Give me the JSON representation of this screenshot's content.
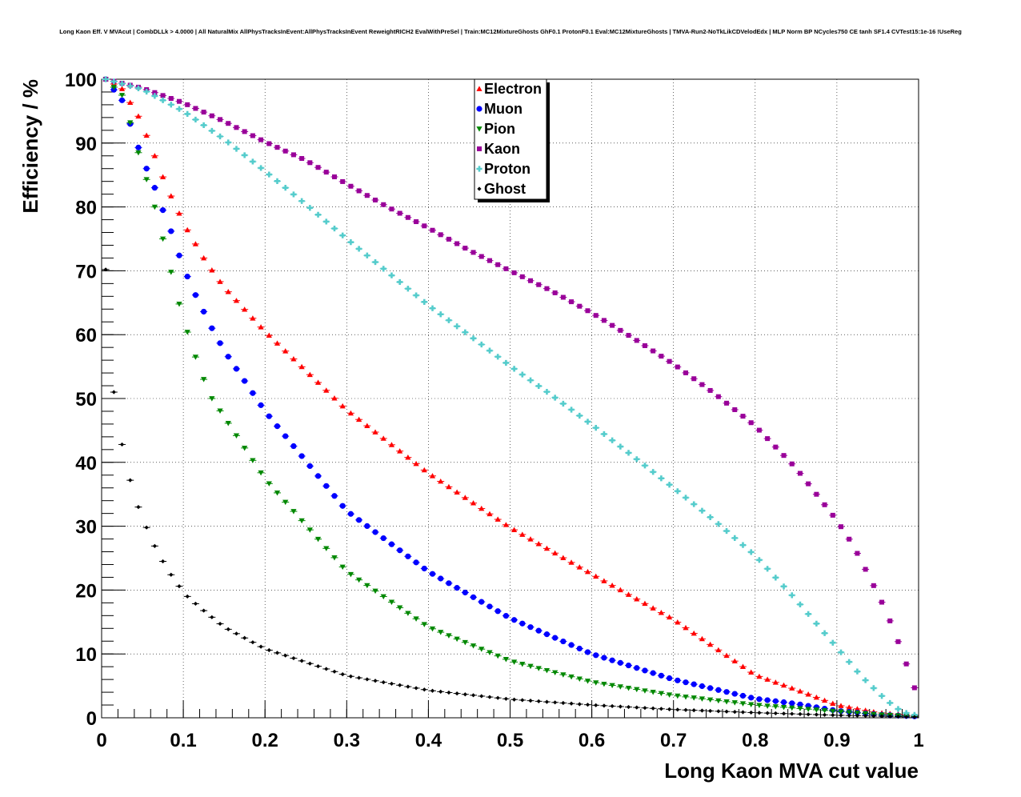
{
  "chart_data": {
    "type": "scatter",
    "title": "Long Kaon Eff. V MVAcut | CombDLLk > 4.0000 | All NaturalMix AllPhysTracksInEvent:AllPhysTracksInEvent ReweightRICH2 EvalWithPreSel | Train:MC12MixtureGhosts GhF0.1 ProtonF0.1 Eval:MC12MixtureGhosts | TMVA-Run2-NoTkLikCDVelodEdx | MLP Norm BP NCycles750 CE tanh SF1.4 CVTest15:1e-16 !UseReg",
    "xlabel": "Long Kaon MVA cut value",
    "ylabel": "Efficiency / %",
    "xlim": [
      0,
      1
    ],
    "ylim": [
      0,
      100
    ],
    "x_ticks": [
      "0",
      "0.1",
      "0.2",
      "0.3",
      "0.4",
      "0.5",
      "0.6",
      "0.7",
      "0.8",
      "0.9",
      "1"
    ],
    "y_ticks": [
      "0",
      "10",
      "20",
      "30",
      "40",
      "50",
      "60",
      "70",
      "80",
      "90",
      "100"
    ],
    "grid": true,
    "legend_position": "top-center",
    "series": [
      {
        "name": "Electron",
        "color": "#ff0000",
        "marker": "triangle-up",
        "points": [
          [
            0.005,
            100
          ],
          [
            0.025,
            98.5
          ],
          [
            0.045,
            94.2
          ],
          [
            0.055,
            91.2
          ],
          [
            0.065,
            88.0
          ],
          [
            0.075,
            84.7
          ],
          [
            0.085,
            81.7
          ],
          [
            0.095,
            79.0
          ],
          [
            0.105,
            76.4
          ],
          [
            0.115,
            74.2
          ],
          [
            0.125,
            72.0
          ],
          [
            0.135,
            70.1
          ],
          [
            0.15,
            67.4
          ],
          [
            0.2,
            60.5
          ],
          [
            0.3,
            48.2
          ],
          [
            0.4,
            38.3
          ],
          [
            0.5,
            29.8
          ],
          [
            0.6,
            22.5
          ],
          [
            0.7,
            15.4
          ],
          [
            0.8,
            6.7
          ],
          [
            0.85,
            4.4
          ],
          [
            0.9,
            2.0
          ],
          [
            0.95,
            0.8
          ],
          [
            1.0,
            0.3
          ]
        ]
      },
      {
        "name": "Muon",
        "color": "#0000ff",
        "marker": "circle",
        "points": [
          [
            0.005,
            100
          ],
          [
            0.025,
            96.7
          ],
          [
            0.045,
            89.3
          ],
          [
            0.055,
            86.0
          ],
          [
            0.065,
            83.0
          ],
          [
            0.075,
            79.5
          ],
          [
            0.085,
            76.2
          ],
          [
            0.095,
            72.4
          ],
          [
            0.105,
            69.1
          ],
          [
            0.115,
            66.2
          ],
          [
            0.125,
            63.6
          ],
          [
            0.135,
            61.0
          ],
          [
            0.15,
            57.5
          ],
          [
            0.2,
            48.0
          ],
          [
            0.3,
            32.4
          ],
          [
            0.4,
            22.9
          ],
          [
            0.5,
            15.6
          ],
          [
            0.6,
            10.0
          ],
          [
            0.7,
            6.0
          ],
          [
            0.8,
            3.0
          ],
          [
            0.85,
            2.2
          ],
          [
            0.9,
            1.1
          ],
          [
            0.95,
            0.5
          ],
          [
            1.0,
            0.2
          ]
        ]
      },
      {
        "name": "Pion",
        "color": "#008800",
        "marker": "triangle-down",
        "points": [
          [
            0.005,
            100
          ],
          [
            0.025,
            97.5
          ],
          [
            0.035,
            93.2
          ],
          [
            0.045,
            88.5
          ],
          [
            0.055,
            84.3
          ],
          [
            0.065,
            80.0
          ],
          [
            0.075,
            75.0
          ],
          [
            0.085,
            69.8
          ],
          [
            0.095,
            64.8
          ],
          [
            0.105,
            60.4
          ],
          [
            0.115,
            56.5
          ],
          [
            0.125,
            53.0
          ],
          [
            0.135,
            50.0
          ],
          [
            0.15,
            47.1
          ],
          [
            0.2,
            37.4
          ],
          [
            0.3,
            22.9
          ],
          [
            0.4,
            14.2
          ],
          [
            0.5,
            8.9
          ],
          [
            0.6,
            5.6
          ],
          [
            0.7,
            3.5
          ],
          [
            0.8,
            2.0
          ],
          [
            0.85,
            1.5
          ],
          [
            0.9,
            1.0
          ],
          [
            0.95,
            0.5
          ],
          [
            1.0,
            0.2
          ]
        ]
      },
      {
        "name": "Kaon",
        "color": "#990099",
        "marker": "square",
        "points": [
          [
            0.005,
            100
          ],
          [
            0.05,
            98.6
          ],
          [
            0.1,
            96.3
          ],
          [
            0.15,
            93.4
          ],
          [
            0.2,
            90.2
          ],
          [
            0.25,
            87.3
          ],
          [
            0.3,
            83.6
          ],
          [
            0.35,
            80.0
          ],
          [
            0.4,
            76.7
          ],
          [
            0.45,
            73.2
          ],
          [
            0.5,
            70.0
          ],
          [
            0.55,
            66.9
          ],
          [
            0.6,
            63.4
          ],
          [
            0.65,
            59.5
          ],
          [
            0.7,
            55.4
          ],
          [
            0.75,
            50.8
          ],
          [
            0.8,
            45.7
          ],
          [
            0.85,
            39.1
          ],
          [
            0.9,
            30.9
          ],
          [
            0.92,
            27.0
          ],
          [
            0.94,
            22.0
          ],
          [
            0.96,
            16.8
          ],
          [
            0.98,
            10.3
          ],
          [
            0.995,
            4.7
          ]
        ]
      },
      {
        "name": "Proton",
        "color": "#55cccc",
        "marker": "cross",
        "points": [
          [
            0.005,
            100
          ],
          [
            0.05,
            98.4
          ],
          [
            0.1,
            95.0
          ],
          [
            0.15,
            90.6
          ],
          [
            0.2,
            85.6
          ],
          [
            0.25,
            80.4
          ],
          [
            0.3,
            75.0
          ],
          [
            0.35,
            69.8
          ],
          [
            0.4,
            64.6
          ],
          [
            0.45,
            59.9
          ],
          [
            0.5,
            55.1
          ],
          [
            0.55,
            50.6
          ],
          [
            0.6,
            45.9
          ],
          [
            0.65,
            41.0
          ],
          [
            0.7,
            36.0
          ],
          [
            0.75,
            30.9
          ],
          [
            0.8,
            25.4
          ],
          [
            0.85,
            18.5
          ],
          [
            0.9,
            11.0
          ],
          [
            0.93,
            6.5
          ],
          [
            0.96,
            2.8
          ],
          [
            0.98,
            0.9
          ],
          [
            1.0,
            0.3
          ]
        ]
      },
      {
        "name": "Ghost",
        "color": "#000000",
        "marker": "diamond",
        "points": [
          [
            0.005,
            70.2
          ],
          [
            0.015,
            51.0
          ],
          [
            0.025,
            42.8
          ],
          [
            0.035,
            37.2
          ],
          [
            0.045,
            33.0
          ],
          [
            0.055,
            29.8
          ],
          [
            0.065,
            26.9
          ],
          [
            0.075,
            24.5
          ],
          [
            0.085,
            22.4
          ],
          [
            0.095,
            20.6
          ],
          [
            0.105,
            19.0
          ],
          [
            0.12,
            17.3
          ],
          [
            0.15,
            14.2
          ],
          [
            0.2,
            10.8
          ],
          [
            0.3,
            6.6
          ],
          [
            0.4,
            4.3
          ],
          [
            0.5,
            2.9
          ],
          [
            0.6,
            2.0
          ],
          [
            0.7,
            1.3
          ],
          [
            0.8,
            0.8
          ],
          [
            0.9,
            0.4
          ],
          [
            1.0,
            0.1
          ]
        ]
      }
    ]
  }
}
